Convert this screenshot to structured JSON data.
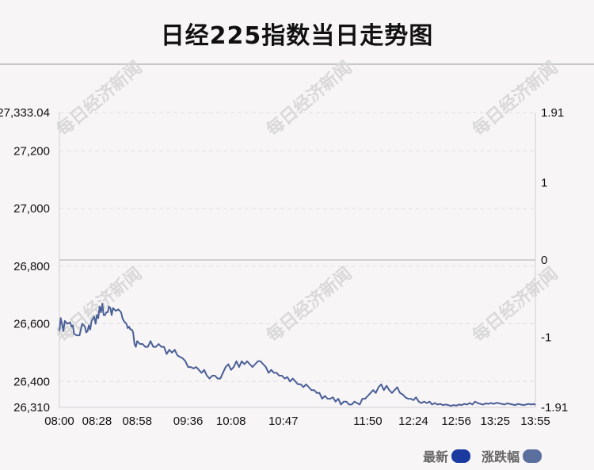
{
  "chart_data": {
    "type": "line",
    "title": "日经225指数当日走势图",
    "watermark": "每日经济新闻",
    "left_axis": {
      "min": 26310,
      "max": 27333.04,
      "ticks": [
        {
          "value": 27333.04,
          "label": "27,333.04"
        },
        {
          "value": 27200,
          "label": "27,200"
        },
        {
          "value": 27000,
          "label": "27,000"
        },
        {
          "value": 26800,
          "label": "26,800"
        },
        {
          "value": 26600,
          "label": "26,600"
        },
        {
          "value": 26400,
          "label": "26,400"
        },
        {
          "value": 26310,
          "label": "26,310"
        }
      ]
    },
    "right_axis": {
      "min": -1.91,
      "max": 1.91,
      "ticks": [
        {
          "value": 1.91,
          "label": "1.91"
        },
        {
          "value": 1,
          "label": "1"
        },
        {
          "value": 0,
          "label": "0"
        },
        {
          "value": -1,
          "label": "-1"
        },
        {
          "value": -1.91,
          "label": "-1.91"
        }
      ]
    },
    "baseline": 26821.5,
    "x_range": [
      0,
      355
    ],
    "x_ticks": [
      {
        "value": 0,
        "label": "08:00"
      },
      {
        "value": 28,
        "label": "08:28"
      },
      {
        "value": 58,
        "label": "08:58"
      },
      {
        "value": 96,
        "label": "09:36"
      },
      {
        "value": 128,
        "label": "10:08"
      },
      {
        "value": 167,
        "label": "10:47"
      },
      {
        "value": 230,
        "label": "11:50"
      },
      {
        "value": 264,
        "label": "12:24"
      },
      {
        "value": 296,
        "label": "12:56"
      },
      {
        "value": 325,
        "label": "13:25"
      },
      {
        "value": 355,
        "label": "13:55"
      }
    ],
    "series": [
      {
        "name": "最新",
        "color": "#4a5f96",
        "points": [
          [
            0,
            26575
          ],
          [
            1,
            26620
          ],
          [
            3,
            26575
          ],
          [
            4,
            26610
          ],
          [
            6,
            26600
          ],
          [
            8,
            26605
          ],
          [
            9,
            26590
          ],
          [
            10,
            26595
          ],
          [
            11,
            26565
          ],
          [
            13,
            26560
          ],
          [
            15,
            26560
          ],
          [
            17,
            26600
          ],
          [
            19,
            26590
          ],
          [
            20,
            26570
          ],
          [
            21,
            26575
          ],
          [
            22,
            26595
          ],
          [
            23,
            26580
          ],
          [
            24,
            26610
          ],
          [
            26,
            26625
          ],
          [
            27,
            26600
          ],
          [
            28,
            26630
          ],
          [
            29,
            26620
          ],
          [
            30,
            26660
          ],
          [
            31,
            26640
          ],
          [
            32,
            26670
          ],
          [
            33,
            26630
          ],
          [
            34,
            26630
          ],
          [
            35,
            26640
          ],
          [
            36,
            26640
          ],
          [
            37,
            26660
          ],
          [
            38,
            26655
          ],
          [
            39,
            26630
          ],
          [
            40,
            26655
          ],
          [
            42,
            26645
          ],
          [
            44,
            26650
          ],
          [
            46,
            26640
          ],
          [
            47,
            26620
          ],
          [
            48,
            26610
          ],
          [
            50,
            26600
          ],
          [
            51,
            26585
          ],
          [
            52,
            26590
          ],
          [
            53,
            26580
          ],
          [
            54,
            26580
          ],
          [
            55,
            26570
          ],
          [
            56,
            26530
          ],
          [
            57,
            26520
          ],
          [
            58,
            26540
          ],
          [
            60,
            26530
          ],
          [
            62,
            26530
          ],
          [
            64,
            26520
          ],
          [
            66,
            26520
          ],
          [
            68,
            26540
          ],
          [
            70,
            26520
          ],
          [
            72,
            26520
          ],
          [
            74,
            26530
          ],
          [
            76,
            26520
          ],
          [
            78,
            26520
          ],
          [
            80,
            26495
          ],
          [
            82,
            26510
          ],
          [
            84,
            26500
          ],
          [
            86,
            26510
          ],
          [
            88,
            26490
          ],
          [
            90,
            26485
          ],
          [
            92,
            26480
          ],
          [
            94,
            26470
          ],
          [
            96,
            26450
          ],
          [
            98,
            26450
          ],
          [
            100,
            26445
          ],
          [
            102,
            26450
          ],
          [
            104,
            26440
          ],
          [
            106,
            26430
          ],
          [
            108,
            26440
          ],
          [
            110,
            26420
          ],
          [
            112,
            26410
          ],
          [
            114,
            26420
          ],
          [
            116,
            26420
          ],
          [
            118,
            26410
          ],
          [
            120,
            26410
          ],
          [
            122,
            26430
          ],
          [
            124,
            26450
          ],
          [
            126,
            26460
          ],
          [
            128,
            26440
          ],
          [
            130,
            26450
          ],
          [
            132,
            26470
          ],
          [
            134,
            26450
          ],
          [
            136,
            26470
          ],
          [
            138,
            26460
          ],
          [
            140,
            26470
          ],
          [
            142,
            26460
          ],
          [
            144,
            26450
          ],
          [
            146,
            26460
          ],
          [
            148,
            26470
          ],
          [
            150,
            26470
          ],
          [
            152,
            26460
          ],
          [
            154,
            26450
          ],
          [
            156,
            26430
          ],
          [
            158,
            26440
          ],
          [
            160,
            26430
          ],
          [
            162,
            26430
          ],
          [
            164,
            26420
          ],
          [
            166,
            26420
          ],
          [
            168,
            26410
          ],
          [
            170,
            26415
          ],
          [
            172,
            26400
          ],
          [
            174,
            26410
          ],
          [
            176,
            26400
          ],
          [
            178,
            26390
          ],
          [
            180,
            26390
          ],
          [
            182,
            26380
          ],
          [
            184,
            26390
          ],
          [
            186,
            26380
          ],
          [
            188,
            26370
          ],
          [
            190,
            26370
          ],
          [
            192,
            26360
          ],
          [
            194,
            26360
          ],
          [
            196,
            26340
          ],
          [
            198,
            26350
          ],
          [
            200,
            26340
          ],
          [
            202,
            26340
          ],
          [
            204,
            26345
          ],
          [
            206,
            26330
          ],
          [
            208,
            26340
          ],
          [
            210,
            26320
          ],
          [
            212,
            26330
          ],
          [
            214,
            26330
          ],
          [
            216,
            26320
          ],
          [
            218,
            26320
          ],
          [
            220,
            26330
          ],
          [
            222,
            26325
          ],
          [
            224,
            26320
          ],
          [
            226,
            26340
          ],
          [
            228,
            26340
          ],
          [
            230,
            26350
          ],
          [
            232,
            26360
          ],
          [
            234,
            26370
          ],
          [
            236,
            26360
          ],
          [
            238,
            26380
          ],
          [
            240,
            26390
          ],
          [
            242,
            26370
          ],
          [
            244,
            26385
          ],
          [
            246,
            26370
          ],
          [
            248,
            26360
          ],
          [
            250,
            26370
          ],
          [
            252,
            26380
          ],
          [
            254,
            26360
          ],
          [
            256,
            26355
          ],
          [
            258,
            26345
          ],
          [
            260,
            26340
          ],
          [
            262,
            26340
          ],
          [
            264,
            26335
          ],
          [
            266,
            26345
          ],
          [
            268,
            26330
          ],
          [
            270,
            26325
          ],
          [
            272,
            26330
          ],
          [
            274,
            26325
          ],
          [
            276,
            26330
          ],
          [
            278,
            26320
          ],
          [
            280,
            26325
          ],
          [
            282,
            26320
          ],
          [
            284,
            26322
          ],
          [
            286,
            26318
          ],
          [
            288,
            26320
          ],
          [
            290,
            26318
          ],
          [
            292,
            26315
          ],
          [
            294,
            26318
          ],
          [
            296,
            26316
          ],
          [
            298,
            26320
          ],
          [
            300,
            26318
          ],
          [
            302,
            26322
          ],
          [
            304,
            26320
          ],
          [
            306,
            26325
          ],
          [
            308,
            26320
          ],
          [
            310,
            26330
          ],
          [
            312,
            26325
          ],
          [
            314,
            26322
          ],
          [
            316,
            26320
          ],
          [
            318,
            26324
          ],
          [
            320,
            26322
          ],
          [
            322,
            26325
          ],
          [
            324,
            26322
          ],
          [
            326,
            26326
          ],
          [
            328,
            26324
          ],
          [
            330,
            26322
          ],
          [
            332,
            26320
          ],
          [
            334,
            26324
          ],
          [
            336,
            26322
          ],
          [
            338,
            26320
          ],
          [
            340,
            26318
          ],
          [
            342,
            26322
          ],
          [
            344,
            26320
          ],
          [
            346,
            26318
          ],
          [
            348,
            26320
          ],
          [
            350,
            26322
          ],
          [
            352,
            26320
          ],
          [
            354,
            26322
          ],
          [
            355,
            26318
          ]
        ]
      }
    ],
    "legend": [
      {
        "label": "最新",
        "color": "#1a3aa0"
      },
      {
        "label": "涨跌幅",
        "color": "#5a6f9e"
      }
    ]
  }
}
